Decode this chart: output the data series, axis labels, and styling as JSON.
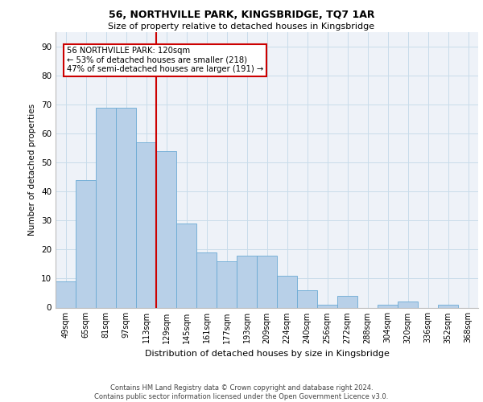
{
  "title": "56, NORTHVILLE PARK, KINGSBRIDGE, TQ7 1AR",
  "subtitle": "Size of property relative to detached houses in Kingsbridge",
  "xlabel": "Distribution of detached houses by size in Kingsbridge",
  "ylabel": "Number of detached properties",
  "categories": [
    "49sqm",
    "65sqm",
    "81sqm",
    "97sqm",
    "113sqm",
    "129sqm",
    "145sqm",
    "161sqm",
    "177sqm",
    "193sqm",
    "209sqm",
    "224sqm",
    "240sqm",
    "256sqm",
    "272sqm",
    "288sqm",
    "304sqm",
    "320sqm",
    "336sqm",
    "352sqm",
    "368sqm"
  ],
  "values": [
    9,
    44,
    69,
    69,
    57,
    54,
    29,
    19,
    16,
    18,
    18,
    11,
    6,
    1,
    4,
    0,
    1,
    2,
    0,
    1,
    0
  ],
  "bar_color": "#b8d0e8",
  "bar_edge_color": "#6aaad4",
  "marker_label": "56 NORTHVILLE PARK: 120sqm",
  "annotation_line1": "← 53% of detached houses are smaller (218)",
  "annotation_line2": "47% of semi-detached houses are larger (191) →",
  "annotation_box_color": "#ffffff",
  "annotation_box_edge_color": "#cc0000",
  "vline_color": "#cc0000",
  "vline_x": 4.5,
  "ylim": [
    0,
    95
  ],
  "yticks": [
    0,
    10,
    20,
    30,
    40,
    50,
    60,
    70,
    80,
    90
  ],
  "grid_color": "#c8dcea",
  "bg_color": "#eef2f8",
  "footer_line1": "Contains HM Land Registry data © Crown copyright and database right 2024.",
  "footer_line2": "Contains public sector information licensed under the Open Government Licence v3.0."
}
